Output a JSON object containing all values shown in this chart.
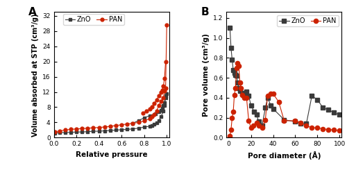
{
  "panel_A": {
    "ZnO_ads_x": [
      0.01,
      0.05,
      0.1,
      0.15,
      0.2,
      0.25,
      0.3,
      0.35,
      0.4,
      0.45,
      0.5,
      0.55,
      0.6,
      0.65,
      0.7,
      0.75,
      0.8,
      0.85,
      0.87,
      0.89,
      0.91,
      0.93,
      0.95,
      0.97,
      0.98,
      0.99,
      1.0
    ],
    "ZnO_ads_y": [
      1.2,
      1.3,
      1.4,
      1.4,
      1.5,
      1.5,
      1.6,
      1.7,
      1.7,
      1.8,
      1.9,
      2.0,
      2.1,
      2.2,
      2.3,
      2.5,
      2.8,
      3.0,
      3.2,
      3.5,
      3.9,
      4.5,
      5.5,
      7.0,
      8.5,
      11.0,
      11.5
    ],
    "ZnO_des_x": [
      0.99,
      0.98,
      0.97,
      0.96,
      0.95,
      0.93,
      0.9,
      0.85,
      0.8,
      0.75,
      0.7
    ],
    "ZnO_des_y": [
      10.5,
      9.2,
      8.5,
      7.8,
      7.2,
      6.8,
      6.3,
      5.8,
      5.2,
      4.5,
      3.8
    ],
    "PAN_ads_x": [
      0.01,
      0.05,
      0.1,
      0.15,
      0.2,
      0.25,
      0.3,
      0.35,
      0.4,
      0.45,
      0.5,
      0.55,
      0.6,
      0.65,
      0.7,
      0.75,
      0.8,
      0.85,
      0.87,
      0.89,
      0.91,
      0.93,
      0.95,
      0.97,
      0.98,
      0.99,
      1.0
    ],
    "PAN_ads_y": [
      1.5,
      1.8,
      2.0,
      2.2,
      2.3,
      2.4,
      2.5,
      2.6,
      2.7,
      2.8,
      3.0,
      3.2,
      3.4,
      3.6,
      3.8,
      4.0,
      4.4,
      5.0,
      5.5,
      6.0,
      7.0,
      8.5,
      9.5,
      10.5,
      12.2,
      13.0,
      29.5
    ],
    "PAN_des_x": [
      0.99,
      0.98,
      0.97,
      0.96,
      0.95,
      0.93,
      0.91,
      0.89,
      0.87,
      0.85,
      0.82,
      0.79
    ],
    "PAN_des_y": [
      20.0,
      15.5,
      13.5,
      12.5,
      12.0,
      11.0,
      10.0,
      9.0,
      8.0,
      7.5,
      7.0,
      6.5
    ],
    "xlabel": "Relative pressure",
    "ylabel": "Volume absorbed at STP (cm³/g)",
    "yticks": [
      0,
      4,
      8,
      12,
      16,
      20,
      24,
      28,
      32
    ],
    "xticks": [
      0.0,
      0.2,
      0.4,
      0.6,
      0.8,
      1.0
    ],
    "ylim": [
      0,
      33
    ],
    "xlim": [
      0.0,
      1.02
    ]
  },
  "panel_B": {
    "ZnO_x": [
      1,
      2,
      3,
      4,
      5,
      6,
      7,
      8,
      9,
      10,
      12,
      14,
      16,
      18,
      20,
      23,
      25,
      27,
      30,
      33,
      35,
      38,
      40,
      50,
      60,
      65,
      70,
      75,
      80,
      85,
      90,
      95,
      100
    ],
    "ZnO_y": [
      1.1,
      0.9,
      0.78,
      0.68,
      0.65,
      0.63,
      0.62,
      0.55,
      0.5,
      0.47,
      0.44,
      0.45,
      0.46,
      0.42,
      0.32,
      0.26,
      0.23,
      0.16,
      0.12,
      0.3,
      0.4,
      0.32,
      0.29,
      0.18,
      0.16,
      0.14,
      0.14,
      0.42,
      0.38,
      0.3,
      0.28,
      0.25,
      0.23
    ],
    "PAN_x": [
      1,
      2,
      3,
      4,
      5,
      6,
      7,
      8,
      9,
      10,
      11,
      12,
      14,
      16,
      18,
      20,
      22,
      25,
      27,
      30,
      33,
      35,
      38,
      40,
      45,
      50,
      60,
      65,
      70,
      75,
      80,
      85,
      90,
      95,
      100
    ],
    "PAN_y": [
      0.02,
      0.08,
      0.2,
      0.26,
      0.43,
      0.5,
      0.7,
      0.75,
      0.72,
      0.55,
      0.5,
      0.43,
      0.4,
      0.4,
      0.17,
      0.1,
      0.12,
      0.15,
      0.12,
      0.1,
      0.18,
      0.42,
      0.44,
      0.44,
      0.36,
      0.17,
      0.17,
      0.15,
      0.12,
      0.1,
      0.1,
      0.09,
      0.08,
      0.08,
      0.07
    ],
    "xlabel": "Pore diameter (Å)",
    "ylabel": "Pore volume (cm³/g)",
    "yticks": [
      0.0,
      0.2,
      0.4,
      0.6,
      0.8,
      1.0,
      1.2
    ],
    "xticks": [
      0,
      20,
      40,
      60,
      80,
      100
    ],
    "ylim": [
      0.0,
      1.26
    ],
    "xlim": [
      -2,
      102
    ]
  },
  "ZnO_color": "#3a3a3a",
  "PAN_color": "#cc2200",
  "legend_ZnO": "ZnO",
  "legend_PAN": "PAN",
  "marker_ZnO": "s",
  "marker_PAN": "o",
  "markersize_A": 3.5,
  "markersize_B": 4.5,
  "linewidth": 0.8,
  "label_A": "A",
  "label_B": "B",
  "font_size_label": 11,
  "font_size_axis": 7.5,
  "font_size_tick": 6.5,
  "font_size_legend": 7
}
